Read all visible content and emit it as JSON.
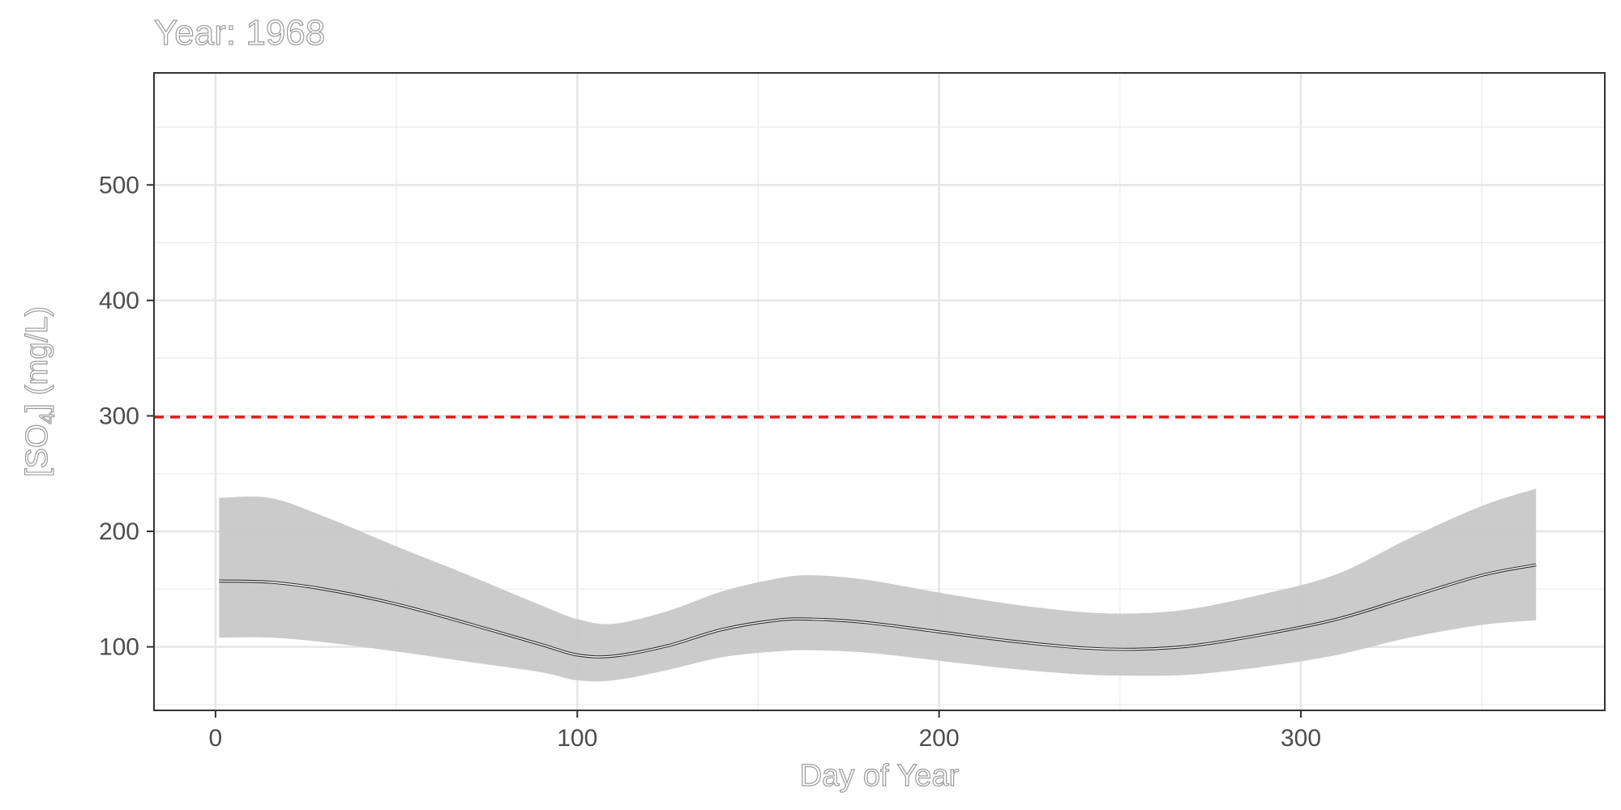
{
  "chart_data": {
    "type": "line",
    "title": "Year: 1968",
    "xlabel": "Day of Year",
    "ylabel": {
      "prefix": "[SO",
      "subscript": "4",
      "suffix": "] (mg/L)"
    },
    "xlim": [
      -17,
      384
    ],
    "ylim": [
      45,
      597
    ],
    "x_ticks": [
      0,
      100,
      200,
      300
    ],
    "x_tick_labels": [
      "0",
      "100",
      "200",
      "300"
    ],
    "y_ticks": [
      100,
      200,
      300,
      400,
      500
    ],
    "y_tick_labels": [
      "100",
      "200",
      "300",
      "400",
      "500"
    ],
    "grid": true,
    "colors": {
      "band": "#c8c8c8",
      "line": "#000000",
      "reference": "#e41a1c",
      "panel_border": "#333333",
      "grid": "#ebebeb"
    },
    "reference_line": {
      "y": 299,
      "style": "dashed"
    },
    "series": [
      {
        "x": [
          1,
          15,
          30,
          50,
          70,
          90,
          100,
          110,
          125,
          140,
          155,
          165,
          180,
          200,
          220,
          240,
          255,
          270,
          290,
          310,
          330,
          350,
          365
        ],
        "fit": [
          157,
          156,
          150,
          137,
          120,
          102,
          93,
          92,
          101,
          115,
          123,
          124,
          121,
          113,
          105,
          99,
          98,
          101,
          111,
          124,
          143,
          162,
          171
        ],
        "lower": [
          108,
          108,
          104,
          96,
          87,
          78,
          71,
          71,
          80,
          91,
          96,
          97,
          95,
          88,
          81,
          76,
          75,
          76,
          83,
          93,
          108,
          119,
          123
        ],
        "upper": [
          229,
          229,
          213,
          187,
          162,
          136,
          124,
          120,
          131,
          148,
          159,
          162,
          158,
          147,
          137,
          130,
          129,
          133,
          146,
          163,
          194,
          222,
          237
        ]
      }
    ]
  }
}
